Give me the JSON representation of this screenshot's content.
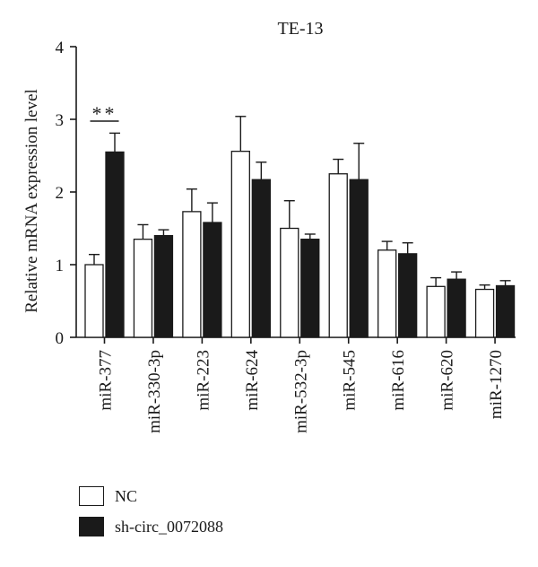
{
  "chart_data": {
    "type": "bar",
    "title": "TE-13",
    "xlabel": "",
    "ylabel": "Relative mRNA expression level",
    "ylim": [
      0,
      4
    ],
    "yticks": [
      0,
      1,
      2,
      3,
      4
    ],
    "categories": [
      "miR-377",
      "miR-330-3p",
      "miR-223",
      "miR-624",
      "miR-532-3p",
      "miR-545",
      "miR-616",
      "miR-620",
      "miR-1270"
    ],
    "series": [
      {
        "name": "NC",
        "color": "#ffffff",
        "values": [
          1.0,
          1.35,
          1.73,
          2.56,
          1.5,
          2.25,
          1.2,
          0.7,
          0.66
        ],
        "errors": [
          0.14,
          0.2,
          0.31,
          0.48,
          0.38,
          0.2,
          0.12,
          0.12,
          0.06
        ]
      },
      {
        "name": "sh-circ_0072088",
        "color": "#1a1a1a",
        "values": [
          2.55,
          1.4,
          1.58,
          2.17,
          1.35,
          2.17,
          1.15,
          0.8,
          0.71
        ],
        "errors": [
          0.26,
          0.08,
          0.27,
          0.24,
          0.07,
          0.5,
          0.15,
          0.1,
          0.07
        ]
      }
    ],
    "annotations": [
      {
        "category": "miR-377",
        "text": "**"
      }
    ],
    "grid": false,
    "legend_position": "bottom-left"
  }
}
